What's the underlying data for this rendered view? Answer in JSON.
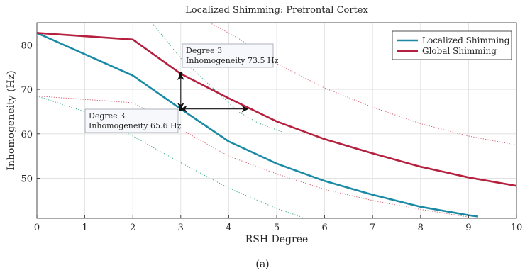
{
  "caption": "(a)",
  "chart_data": {
    "type": "line",
    "title": "Localized Shimming: Prefrontal Cortex",
    "xlabel": "RSH Degree",
    "ylabel": "Inhomogeneity (Hz)",
    "xlim": [
      0,
      10
    ],
    "ylim": [
      41,
      85
    ],
    "xticks": [
      0,
      1,
      2,
      3,
      4,
      5,
      6,
      7,
      8,
      9,
      10
    ],
    "yticks": [
      50,
      60,
      70,
      80
    ],
    "grid": true,
    "legend_position": "top-right",
    "series": [
      {
        "name": "Localized Shimming",
        "color": "#1a8aa5",
        "x": [
          0,
          2,
          3,
          4,
          5,
          6,
          7,
          8,
          9,
          9.2
        ],
        "y": [
          82.7,
          73.1,
          65.6,
          58.3,
          53.3,
          49.4,
          46.3,
          43.6,
          41.7,
          41.4
        ]
      },
      {
        "name": "Global Shimming",
        "color": "#b5203f",
        "x": [
          0,
          2,
          3,
          4,
          5,
          6,
          7,
          8,
          9,
          10
        ],
        "y": [
          82.7,
          81.2,
          73.5,
          68.0,
          62.8,
          58.8,
          55.6,
          52.6,
          50.2,
          48.3
        ]
      }
    ],
    "reference_curves": [
      {
        "color": "#3aaa8a",
        "x": [
          0,
          1,
          2,
          3,
          4,
          5,
          5.6
        ],
        "y": [
          68.5,
          65.0,
          59.5,
          53.5,
          47.8,
          43.2,
          41.0
        ]
      },
      {
        "color": "#d06070",
        "x": [
          0,
          2,
          3,
          4,
          5,
          6,
          7,
          8,
          9
        ],
        "y": [
          68.5,
          67.0,
          61.0,
          55.0,
          51.0,
          47.5,
          45.0,
          43.0,
          41.3
        ]
      },
      {
        "color": "#3aaa8a",
        "x": [
          2.4,
          3,
          3.7,
          4.2,
          4.6,
          5.1
        ],
        "y": [
          85,
          77,
          70,
          65,
          62.5,
          60.5
        ]
      },
      {
        "color": "#d06070",
        "x": [
          3.6,
          4.2,
          5,
          6,
          7,
          8,
          9,
          10
        ],
        "y": [
          85,
          81.5,
          75.8,
          70.3,
          66.0,
          62.3,
          59.5,
          57.5
        ]
      }
    ],
    "annotations": [
      {
        "x": 3,
        "y": 73.5,
        "series": "Global Shimming",
        "lines": [
          "Degree 3",
          "Inhomogeneity 73.5 Hz"
        ]
      },
      {
        "x": 3,
        "y": 65.6,
        "series": "Localized Shimming",
        "lines": [
          "Degree 3",
          "Inhomogeneity 65.6 Hz"
        ]
      }
    ],
    "arrows": [
      {
        "from": [
          3,
          65.6
        ],
        "to": [
          3,
          73.5
        ],
        "heads": "both"
      },
      {
        "from": [
          3,
          65.6
        ],
        "to": [
          4.4,
          65.6
        ],
        "heads": "both"
      }
    ]
  }
}
